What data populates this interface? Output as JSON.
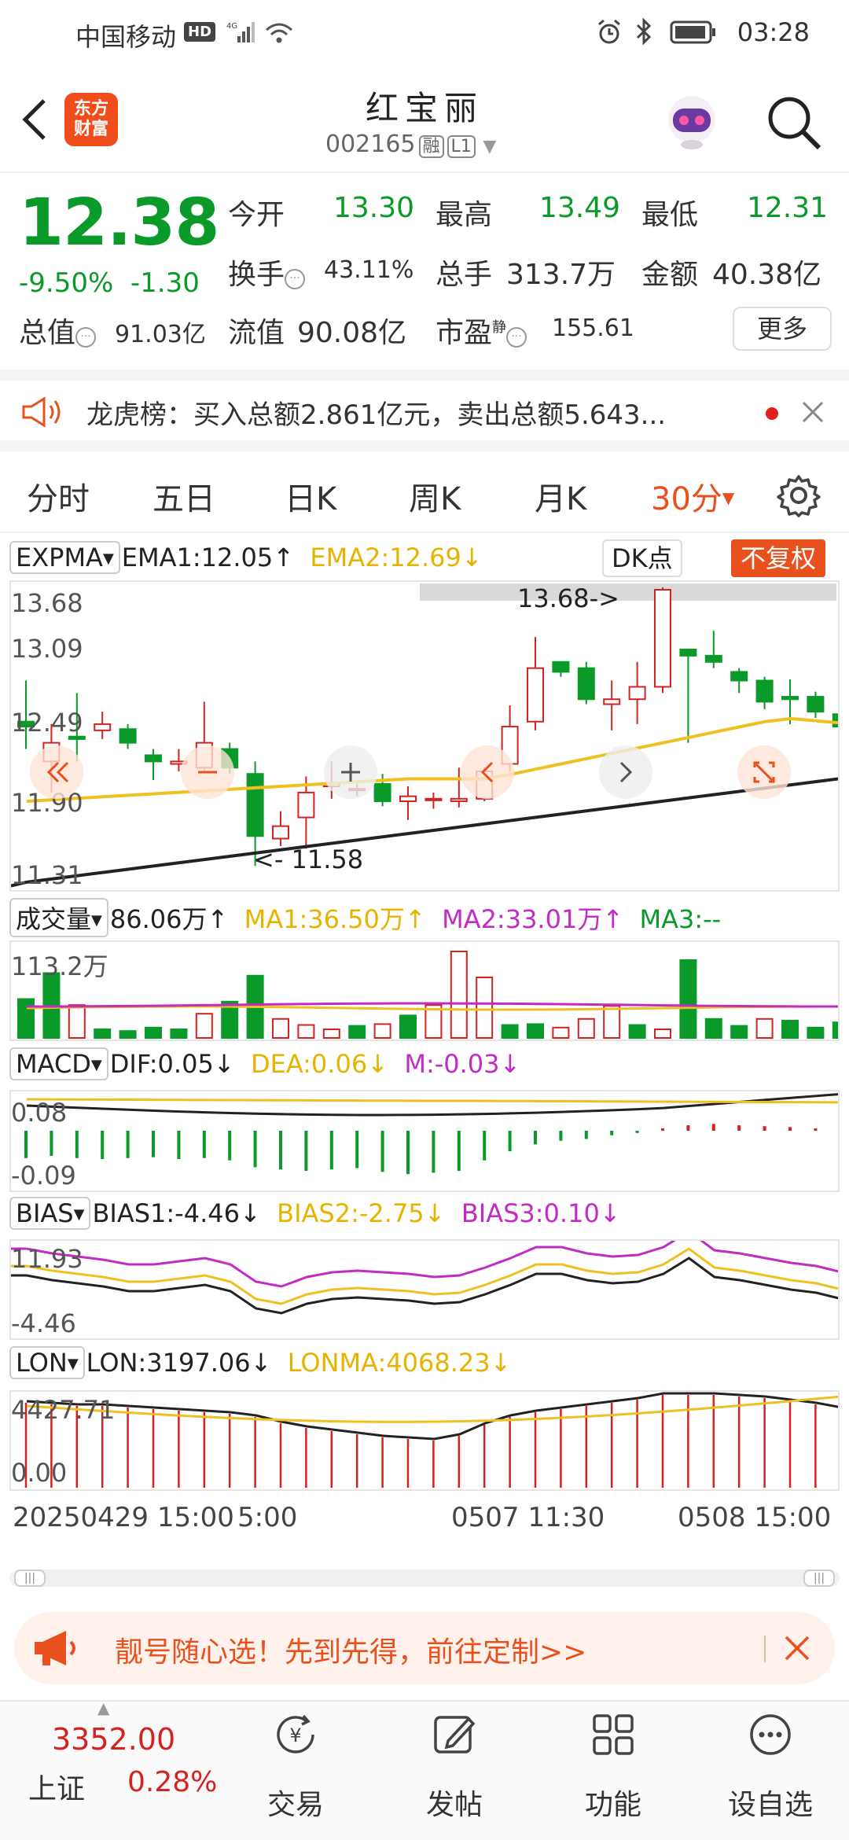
{
  "status_bar": {
    "carrier": "中国移动",
    "hd_badge": "HD",
    "signal_label": "4G",
    "time": "03:28"
  },
  "header": {
    "title": "红宝丽",
    "code": "002165",
    "tag1": "融",
    "tag2": "L1",
    "logo_line1": "东方",
    "logo_line2": "财富"
  },
  "quote": {
    "price": "12.38",
    "change_pct": "-9.50%",
    "change_amt": "-1.30",
    "open_label": "今开",
    "open": "13.30",
    "high_label": "最高",
    "high": "13.49",
    "low_label": "最低",
    "low": "12.31",
    "turnover_label": "换手",
    "turnover": "43.11%",
    "volume_label": "总手",
    "volume": "313.7万",
    "amount_label": "金额",
    "amount": "40.38亿",
    "total_value_label": "总值",
    "total_value": "91.03亿",
    "float_value_label": "流值",
    "float_value": "90.08亿",
    "pe_label": "市盈",
    "pe_sup": "静",
    "pe": "155.61",
    "more_label": "更多"
  },
  "notice": {
    "text": "龙虎榜：买入总额2.861亿元，卖出总额5.643..."
  },
  "tabs": [
    {
      "label": "分时"
    },
    {
      "label": "五日"
    },
    {
      "label": "日K"
    },
    {
      "label": "周K"
    },
    {
      "label": "月K"
    },
    {
      "label": "30分"
    }
  ],
  "main_chart": {
    "indicator": "EXPMA",
    "ema1": "EMA1:12.05↑",
    "ema2": "EMA2:12.69↓",
    "dk_label": "DK点",
    "adjust_label": "不复权",
    "y_labels": [
      "13.68",
      "13.09",
      "12.49",
      "11.90",
      "11.31"
    ],
    "max_annot": "13.68->",
    "min_annot": "<- 11.58",
    "colors": {
      "up": "#d32222",
      "down": "#0a9a2a",
      "ema1": "#222222",
      "ema2": "#f0c020"
    }
  },
  "volume_chart": {
    "indicator": "成交量",
    "value": "86.06万↑",
    "ma1": "MA1:36.50万↑",
    "ma2": "MA2:33.01万↑",
    "ma3": "MA3:--",
    "y_label": "113.2万"
  },
  "macd_chart": {
    "indicator": "MACD",
    "dif": "DIF:0.05↓",
    "dea": "DEA:0.06↓",
    "m": "M:-0.03↓",
    "y_top": "0.08",
    "y_bottom": "-0.09"
  },
  "bias_chart": {
    "indicator": "BIAS",
    "bias1": "BIAS1:-4.46↓",
    "bias2": "BIAS2:-2.75↓",
    "bias3": "BIAS3:0.10↓",
    "y_top": "11.93",
    "y_bottom": "-4.46"
  },
  "lon_chart": {
    "indicator": "LON",
    "lon": "LON:3197.06↓",
    "lonma": "LONMA:4068.23↓",
    "y_top": "4427.71",
    "y_bottom": "0.00"
  },
  "x_labels": [
    "20250429 15:00",
    "5:00",
    "0507 11:30",
    "0508 15:00"
  ],
  "ad": {
    "text": "靓号随心选！先到先得，前往定制>>"
  },
  "bottom_nav": {
    "index_price": "3352.00",
    "index_name": "上证",
    "index_change": "0.28%",
    "items": [
      {
        "label": "交易"
      },
      {
        "label": "发帖"
      },
      {
        "label": "功能"
      },
      {
        "label": "设自选"
      }
    ]
  }
}
